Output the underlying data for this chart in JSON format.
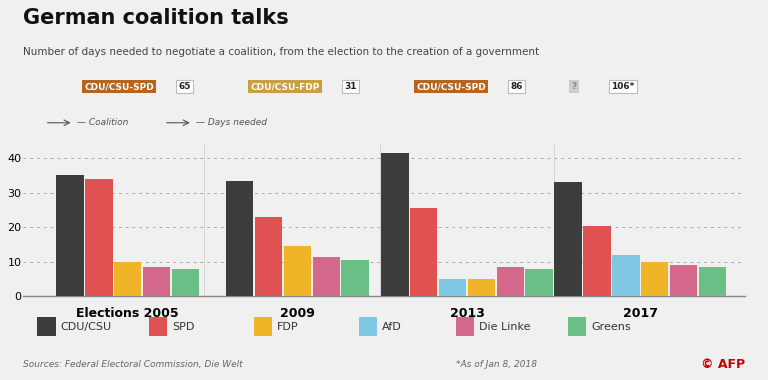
{
  "title": "German coalition talks",
  "subtitle": "Number of days needed to negotiate a coalition, from the election to the creation of a government",
  "elections": [
    "Elections 2005",
    "2009",
    "2013",
    "2017"
  ],
  "coalition_labels": [
    "CDU/CSU-SPD",
    "CDU/CSU-FDP",
    "CDU/CSU-SPD",
    "?"
  ],
  "coalition_days": [
    "65",
    "31",
    "86",
    "106*"
  ],
  "coalition_label_colors": [
    "#b5651d",
    "#c8a040",
    "#b5651d",
    "#cccccc"
  ],
  "coalition_label_text_colors": [
    "#ffffff",
    "#ffffff",
    "#ffffff",
    "#888888"
  ],
  "parties": [
    "CDU/CSU",
    "SPD",
    "FDP",
    "AfD",
    "Die Linke",
    "Greens"
  ],
  "party_colors": [
    "#3d3d3d",
    "#e05252",
    "#f0b429",
    "#7ec8e3",
    "#d4688a",
    "#6abf87"
  ],
  "groups": {
    "Elections 2005": {
      "bars": [
        35,
        34,
        10,
        8.5,
        8
      ],
      "colors": [
        "#3d3d3d",
        "#e05252",
        "#f0b429",
        "#d4688a",
        "#6abf87"
      ]
    },
    "2009": {
      "bars": [
        33.5,
        23,
        14.5,
        11.5,
        10.5
      ],
      "colors": [
        "#3d3d3d",
        "#e05252",
        "#f0b429",
        "#d4688a",
        "#6abf87"
      ]
    },
    "2013": {
      "bars": [
        41.5,
        25.5,
        5,
        5,
        8.5,
        8
      ],
      "colors": [
        "#3d3d3d",
        "#e05252",
        "#7ec8e3",
        "#f0b429",
        "#d4688a",
        "#6abf87"
      ]
    },
    "2017": {
      "bars": [
        33,
        20.5,
        12,
        10,
        9,
        8.5
      ],
      "colors": [
        "#3d3d3d",
        "#e05252",
        "#7ec8e3",
        "#f0b429",
        "#d4688a",
        "#6abf87"
      ]
    }
  },
  "group_centers": [
    0.145,
    0.38,
    0.615,
    0.855
  ],
  "bar_width": 0.038,
  "bar_gap": 0.002,
  "ylim": [
    0,
    44
  ],
  "yticks": [
    0,
    10,
    20,
    30,
    40
  ],
  "source_text": "Sources: Federal Electoral Commission, Die Welt",
  "footnote_text": "*As of Jan 8, 2018",
  "copyright_text": "© AFP",
  "bg_color": "#f0f0f0"
}
